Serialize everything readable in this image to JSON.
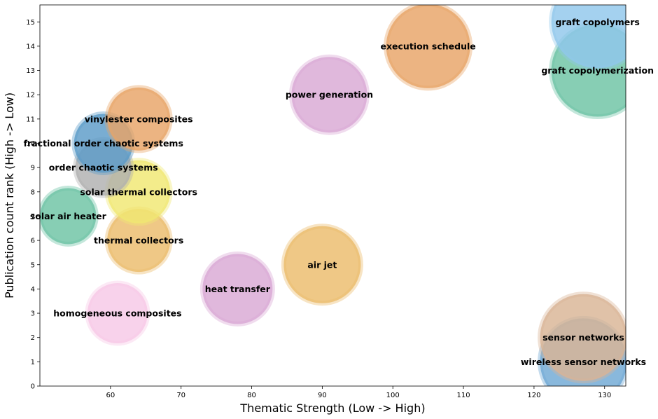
{
  "chart_data": {
    "type": "scatter",
    "title": "",
    "xlabel": "Thematic Strength (Low -> High)",
    "ylabel": "Publication count rank (High -> Low)",
    "xlim": [
      50,
      133
    ],
    "ylim": [
      0,
      15.7
    ],
    "xticks": [
      60,
      70,
      80,
      90,
      100,
      110,
      120,
      130
    ],
    "yticks": [
      0,
      1,
      2,
      3,
      4,
      5,
      6,
      7,
      8,
      9,
      10,
      11,
      12,
      13,
      14,
      15
    ],
    "grid": false,
    "points": [
      {
        "label": "wireless sensor networks",
        "x": 127,
        "y": 1,
        "size": 62,
        "color": "#6fa8d4"
      },
      {
        "label": "sensor networks",
        "x": 127,
        "y": 2,
        "size": 62,
        "color": "#d9b595"
      },
      {
        "label": "homogeneous composites",
        "x": 61,
        "y": 3,
        "size": 43,
        "color": "#f7c8e6"
      },
      {
        "label": "heat transfer",
        "x": 78,
        "y": 4,
        "size": 50,
        "color": "#d9a8d4"
      },
      {
        "label": "air jet",
        "x": 90,
        "y": 5,
        "size": 55,
        "color": "#ebbc6b"
      },
      {
        "label": "thermal collectors",
        "x": 64,
        "y": 6,
        "size": 45,
        "color": "#ebbc6b"
      },
      {
        "label": "solar air heater",
        "x": 54,
        "y": 7,
        "size": 40,
        "color": "#6cc3a4"
      },
      {
        "label": "solar thermal collectors",
        "x": 64,
        "y": 8,
        "size": 45,
        "color": "#f0e872"
      },
      {
        "label": "order chaotic systems",
        "x": 59,
        "y": 9,
        "size": 40,
        "color": "#b0b0b0"
      },
      {
        "label": "fractional order chaotic systems",
        "x": 59,
        "y": 10,
        "size": 42,
        "color": "#5b9bc8"
      },
      {
        "label": "vinylester composites",
        "x": 64,
        "y": 11,
        "size": 45,
        "color": "#e8a466"
      },
      {
        "label": "power generation",
        "x": 91,
        "y": 12,
        "size": 54,
        "color": "#d9a8d4"
      },
      {
        "label": "graft copolymerization",
        "x": 129,
        "y": 13,
        "size": 66,
        "color": "#6cc3a4"
      },
      {
        "label": "execution schedule",
        "x": 105,
        "y": 14,
        "size": 60,
        "color": "#e8a466"
      },
      {
        "label": "graft copolymers",
        "x": 129,
        "y": 15,
        "size": 66,
        "color": "#90c7eb"
      }
    ]
  }
}
